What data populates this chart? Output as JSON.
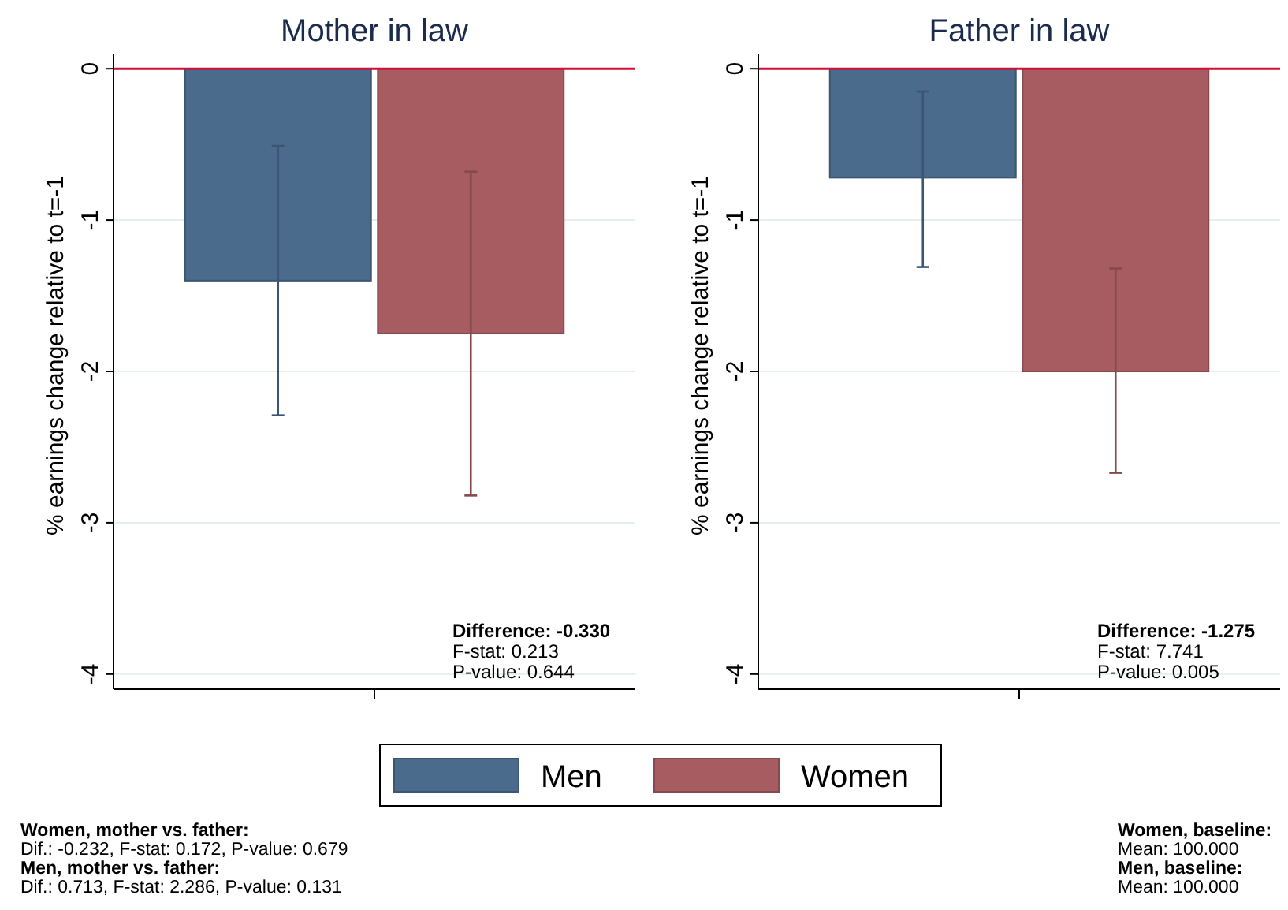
{
  "chart_data": [
    {
      "type": "bar",
      "title": "Mother in law",
      "ylabel": "% earnings change relative to t=-1",
      "categories": [
        null
      ],
      "series": [
        {
          "name": "Men",
          "color": "#4a6b8c",
          "values": [
            -1.4
          ],
          "errors": [
            [
              -2.29,
              -0.51
            ]
          ]
        },
        {
          "name": "Women",
          "color": "#a65c60",
          "values": [
            -1.75
          ],
          "errors": [
            [
              -2.82,
              -0.68
            ]
          ]
        }
      ],
      "ylim": [
        -4.1,
        0.1
      ],
      "yticks": [
        -4,
        -3,
        -2,
        -1,
        0
      ],
      "grid": "y",
      "legend": "bottom",
      "ref_lines": [
        {
          "axis": "y",
          "value": 0,
          "color": "#d0103a"
        }
      ],
      "annotations": [
        "Difference: -0.330",
        "F-stat: 0.213",
        "P-value: 0.644",
        "Women, mother vs. father:",
        "Dif.: -0.232, F-stat: 0.172, P-value: 0.679",
        "Men, mother vs. father:",
        "Dif.: 0.713, F-stat: 2.286, P-value: 0.131"
      ]
    },
    {
      "type": "bar",
      "title": "Father in law",
      "ylabel": "% earnings change relative to t=-1",
      "categories": [
        null
      ],
      "series": [
        {
          "color": "#4a6b8c",
          "values": [
            -0.72
          ],
          "errors": [
            [
              -1.31,
              -0.15
            ]
          ]
        },
        {
          "color": "#a65c60",
          "values": [
            -2.0
          ],
          "errors": [
            [
              -2.67,
              -1.32
            ]
          ]
        }
      ],
      "ylim": [
        -4.1,
        0.1
      ],
      "yticks": [
        -4,
        -3,
        -2,
        -1,
        0
      ],
      "grid": "y",
      "ref_lines": [
        {
          "axis": "y",
          "value": 0,
          "color": "#d0103a"
        }
      ],
      "annotations": [
        "Difference: -1.275",
        "F-stat: 7.741",
        "P-value: 0.005",
        "Women, baseline:",
        "Mean: 100.000",
        "Men, baseline:",
        "Mean: 100.000"
      ]
    }
  ]
}
